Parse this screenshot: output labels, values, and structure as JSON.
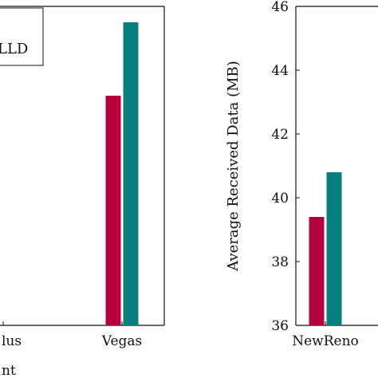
{
  "chart_data": [
    {
      "type": "bar",
      "categories": [
        "lus",
        "Vegas"
      ],
      "series": [
        {
          "values": [
            null,
            0.72
          ]
        },
        {
          "values": [
            null,
            0.95
          ]
        }
      ],
      "ylim": [
        0,
        1
      ],
      "grid": false,
      "legend": {
        "placement": "top-left",
        "entries": [
          "LLD"
        ]
      },
      "xlabel": "nt",
      "ylabel": "",
      "title": ""
    },
    {
      "type": "bar",
      "categories": [
        "NewReno"
      ],
      "series": [
        {
          "values": [
            39.4
          ]
        },
        {
          "values": [
            40.8
          ]
        }
      ],
      "ylim": [
        36,
        46
      ],
      "yticks": [
        "36",
        "38",
        "40",
        "42",
        "44",
        "46"
      ],
      "grid": false,
      "xlabel": "",
      "ylabel": "Average Received Data (MB)",
      "title": ""
    }
  ],
  "colors": {
    "series_1": "#b5003f",
    "series_2": "#087f7d",
    "axis": "#111111"
  }
}
